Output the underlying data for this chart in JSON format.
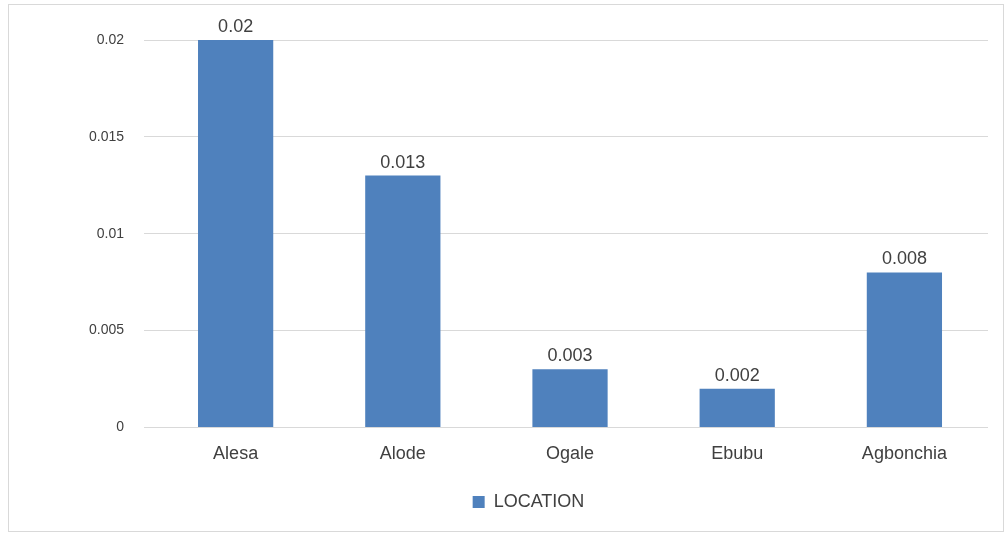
{
  "chart_data": {
    "type": "bar",
    "categories": [
      "Alesa",
      "Alode",
      "Ogale",
      "Ebubu",
      "Agbonchia"
    ],
    "series": [
      {
        "name": "LOCATION",
        "color": "#4f81bd",
        "values": [
          0.02,
          0.013,
          0.003,
          0.002,
          0.008
        ]
      }
    ],
    "ylim": [
      0,
      0.02
    ],
    "yticks": [
      0,
      0.005,
      0.01,
      0.015,
      0.02
    ],
    "grid": "y",
    "legend": "bottom",
    "data_labels": true
  }
}
